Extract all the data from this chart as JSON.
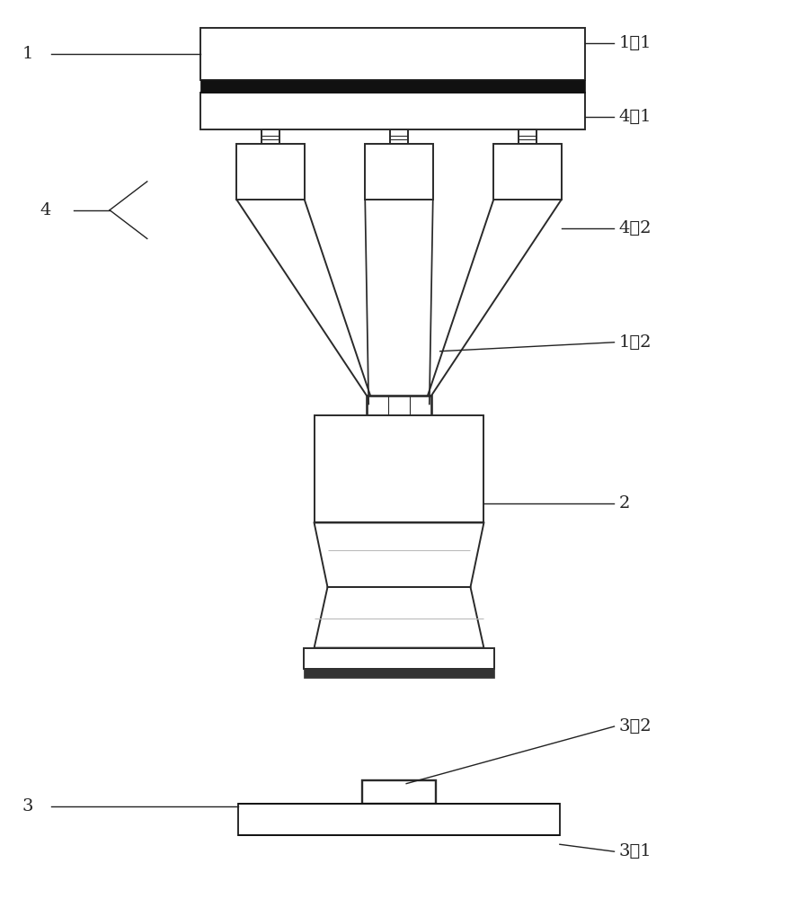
{
  "bg_color": "#ffffff",
  "line_color": "#2a2a2a",
  "dark_line": "#111111",
  "label_color": "#222222",
  "font_size": 14,
  "fig_w": 8.88,
  "fig_h": 10.0,
  "dpi": 100
}
